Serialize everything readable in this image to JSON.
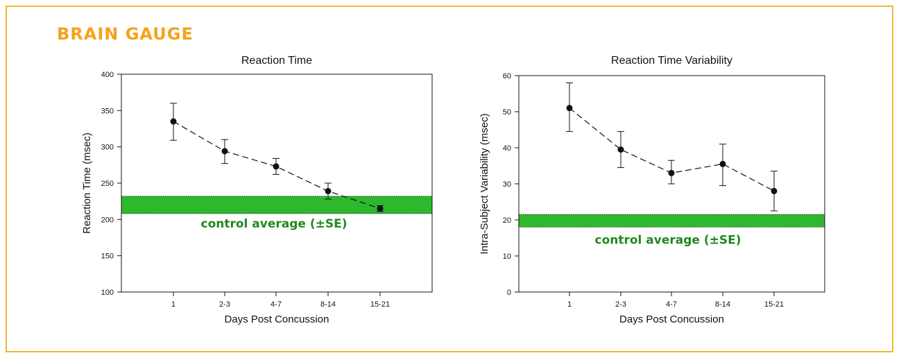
{
  "brand": {
    "title": "BRAIN GAUGE",
    "color": "#f5a31a",
    "frame_color": "#f2b632"
  },
  "chart_data": [
    {
      "type": "line",
      "title": "Reaction Time",
      "xlabel": "Days Post Concussion",
      "ylabel": "Reaction Time (msec)",
      "categories": [
        "1",
        "2-3",
        "4-7",
        "8-14",
        "15-21"
      ],
      "series": [
        {
          "values": [
            335,
            294,
            273,
            239,
            215
          ],
          "error_low": [
            309,
            277,
            262,
            228,
            211
          ],
          "error_high": [
            360,
            310,
            284,
            250,
            219
          ]
        }
      ],
      "ylim": [
        100,
        400
      ],
      "yticks": [
        100,
        150,
        200,
        250,
        300,
        350,
        400
      ],
      "control_band": {
        "low": 208,
        "high": 232,
        "label": "control average (±SE)",
        "color": "#2eb82e"
      },
      "line_style": "dashed",
      "grid": false
    },
    {
      "type": "line",
      "title": "Reaction Time Variability",
      "xlabel": "Days Post Concussion",
      "ylabel": "Intra-Subject Variability (msec)",
      "categories": [
        "1",
        "2-3",
        "4-7",
        "8-14",
        "15-21"
      ],
      "series": [
        {
          "values": [
            51,
            39.5,
            33,
            35.5,
            28
          ],
          "error_low": [
            44.5,
            34.5,
            30,
            29.5,
            22.5
          ],
          "error_high": [
            58,
            44.5,
            36.5,
            41,
            33.5
          ]
        }
      ],
      "ylim": [
        0,
        60
      ],
      "yticks": [
        0,
        10,
        20,
        30,
        40,
        50,
        60
      ],
      "control_band": {
        "low": 18,
        "high": 21.5,
        "label": "control average (±SE)",
        "color": "#2eb82e"
      },
      "line_style": "dashed",
      "grid": false
    }
  ]
}
